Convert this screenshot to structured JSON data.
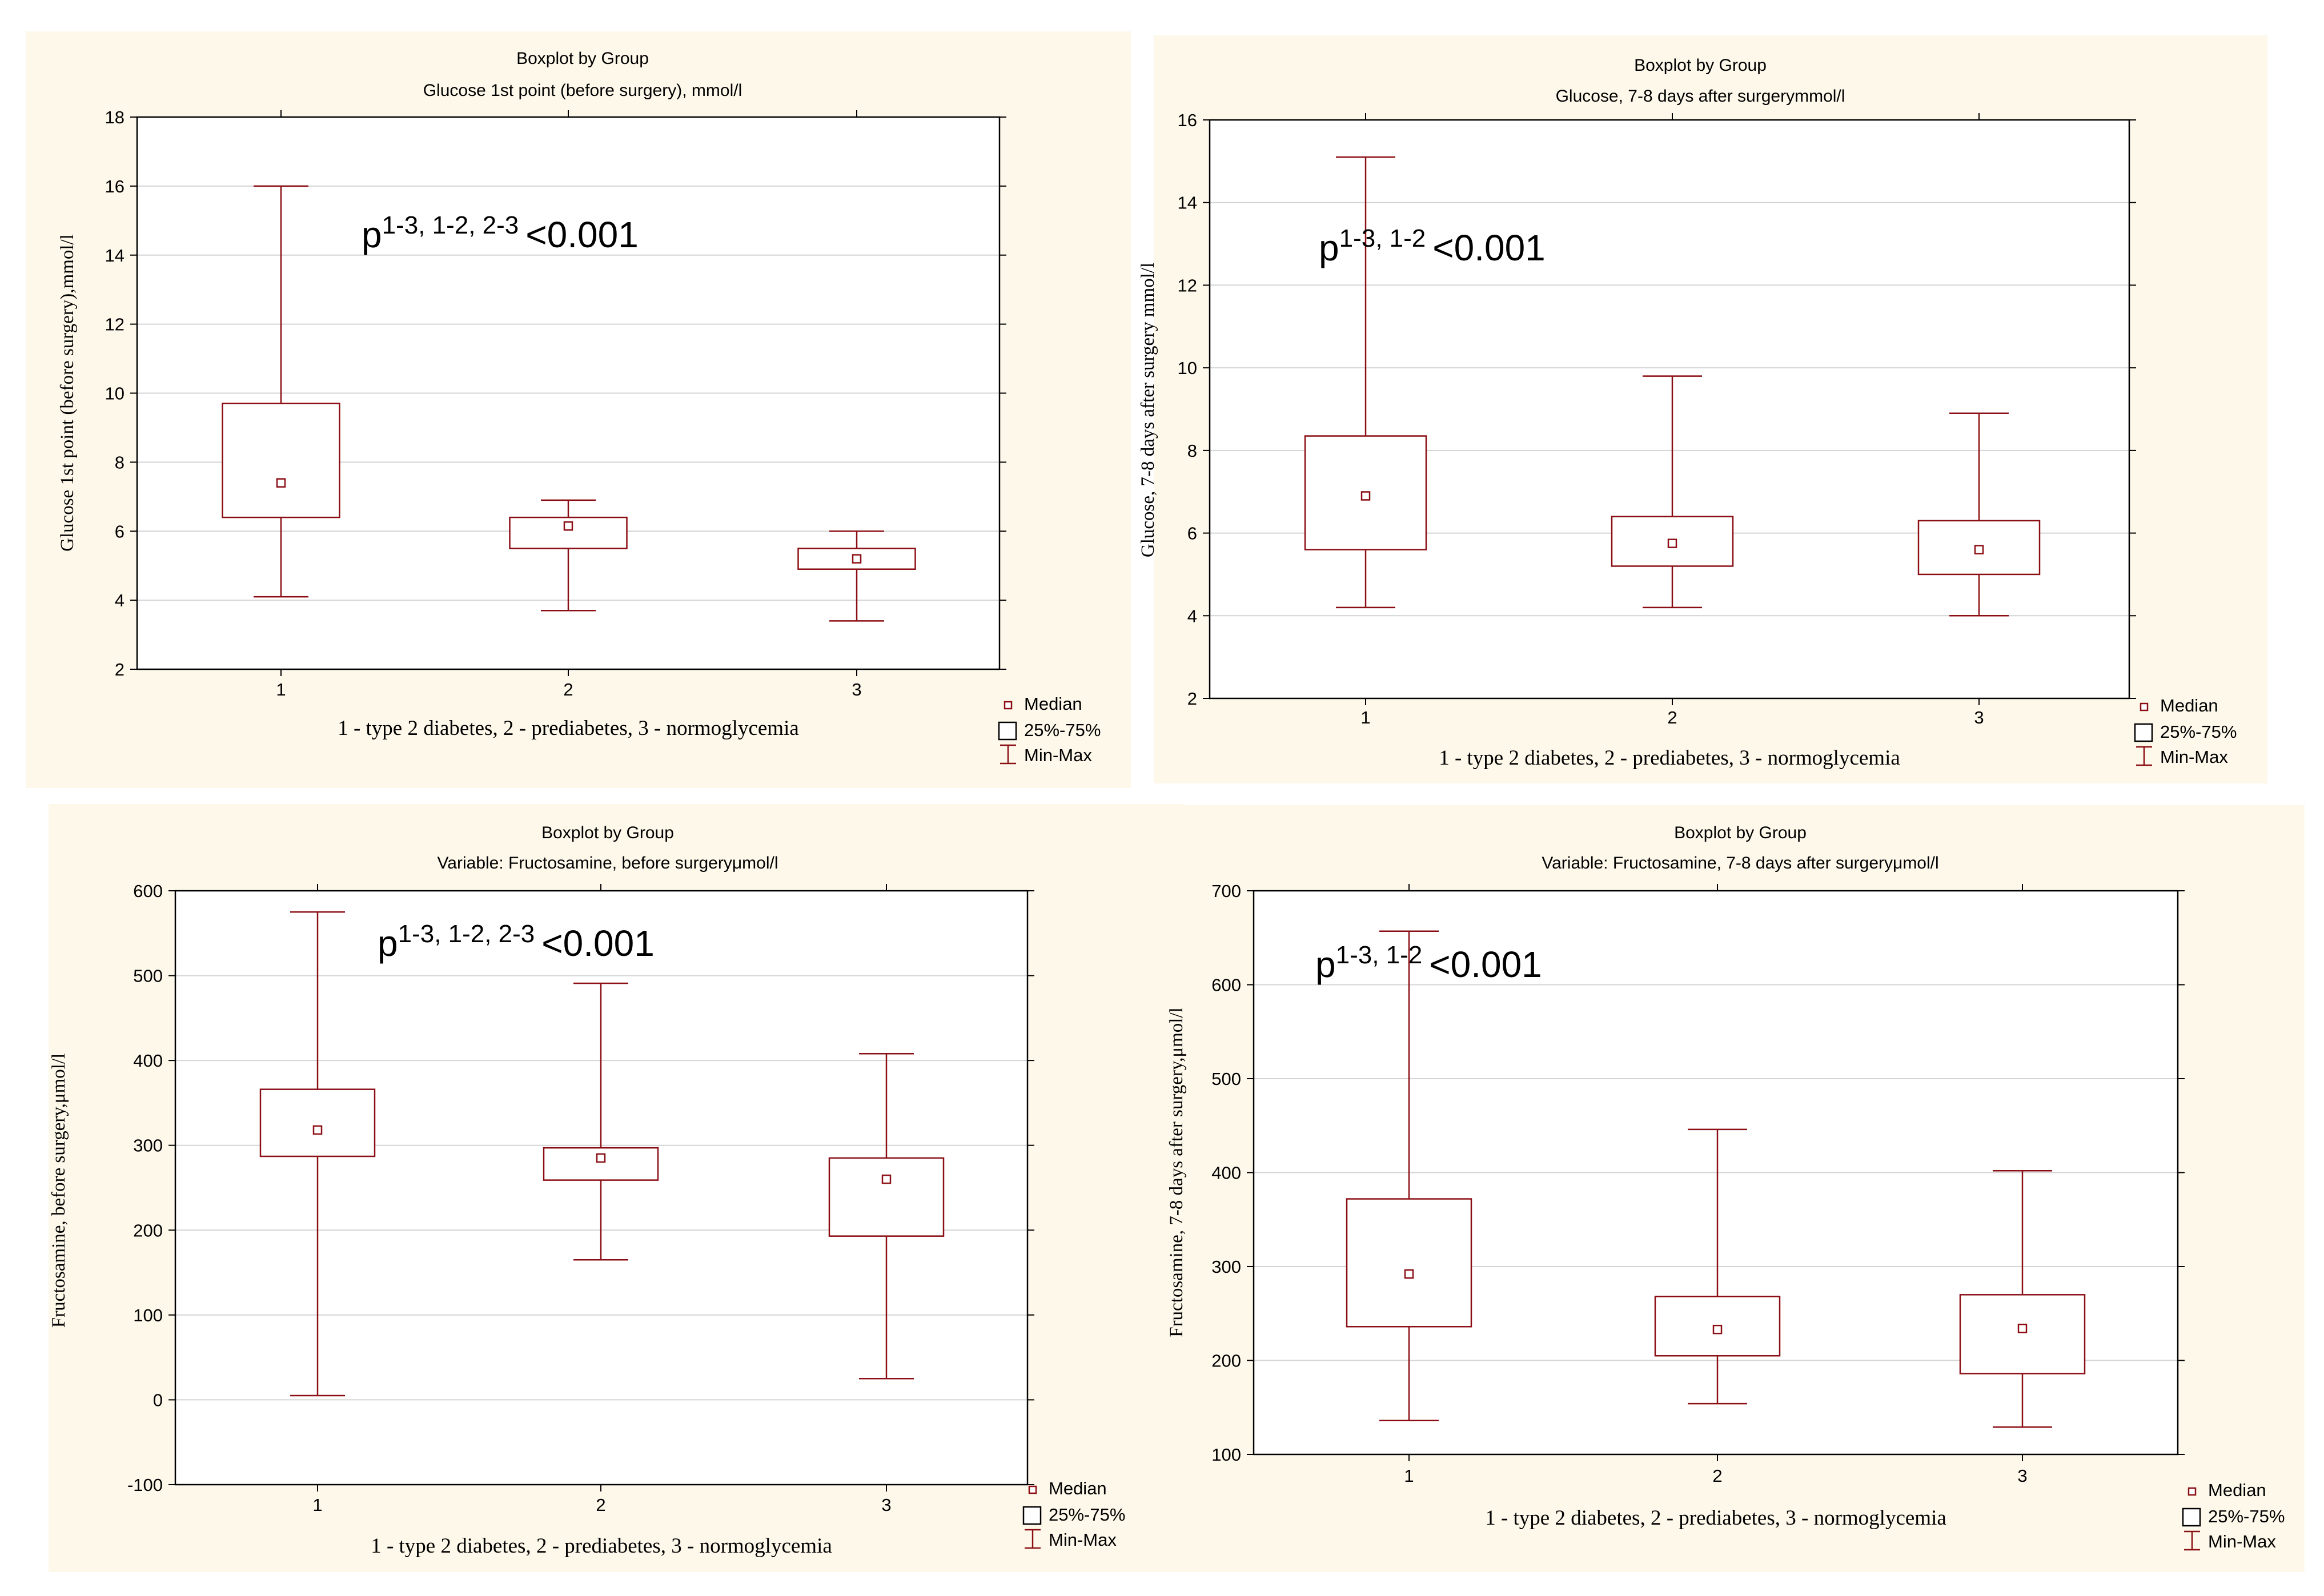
{
  "legend": {
    "median": "Median",
    "box": "25%-75%",
    "whisker": "Min-Max"
  },
  "colors": {
    "mark": "#8b0e14",
    "panel": "#fdf8ea",
    "grid": "#d4d4d4",
    "frame": "#000000"
  },
  "chart_data": [
    {
      "type": "boxplot",
      "title": "Boxplot by Group",
      "subtitle": "Glucose 1st point (before surgery), mmol/l",
      "ylabel": "Glucose 1st point (before surgery),mmol/l",
      "xlabel": "1 - type 2 diabetes, 2 - prediabetes, 3 - normoglycemia",
      "ylim": [
        2,
        18
      ],
      "yticks": [
        2,
        4,
        6,
        8,
        10,
        12,
        14,
        16,
        18
      ],
      "categories": [
        "1",
        "2",
        "3"
      ],
      "annotation": {
        "base": "p",
        "sup": "1-3, 1-2, 2-3",
        "tail": "<0.001"
      },
      "groups": [
        {
          "category": "1",
          "min": 4.1,
          "q1": 6.4,
          "median": 7.4,
          "q3": 9.7,
          "max": 16.0
        },
        {
          "category": "2",
          "min": 3.7,
          "q1": 5.5,
          "median": 6.15,
          "q3": 6.4,
          "max": 6.9
        },
        {
          "category": "3",
          "min": 3.4,
          "q1": 4.9,
          "median": 5.2,
          "q3": 5.5,
          "max": 6.0
        }
      ]
    },
    {
      "type": "boxplot",
      "title": "Boxplot by Group",
      "subtitle": "Glucose, 7-8 days after surgerymmol/l",
      "ylabel": "Glucose, 7-8 days after surgery mmol/l",
      "xlabel": "1 - type 2 diabetes, 2 - prediabetes, 3 - normoglycemia",
      "ylim": [
        2,
        16
      ],
      "yticks": [
        2,
        4,
        6,
        8,
        10,
        12,
        14,
        16
      ],
      "categories": [
        "1",
        "2",
        "3"
      ],
      "annotation": {
        "base": "p",
        "sup": "1-3, 1-2",
        "tail": "<0.001"
      },
      "groups": [
        {
          "category": "1",
          "min": 4.2,
          "q1": 5.6,
          "median": 6.9,
          "q3": 8.35,
          "max": 15.1
        },
        {
          "category": "2",
          "min": 4.2,
          "q1": 5.2,
          "median": 5.75,
          "q3": 6.4,
          "max": 9.8
        },
        {
          "category": "3",
          "min": 4.0,
          "q1": 5.0,
          "median": 5.6,
          "q3": 6.3,
          "max": 8.9
        }
      ]
    },
    {
      "type": "boxplot",
      "title": "Boxplot by Group",
      "subtitle": "Variable: Fructosamine, before surgeryμmol/l",
      "ylabel": "Fructosamine, before surgery,μmol/l",
      "xlabel": "1 - type 2 diabetes, 2 - prediabetes, 3 - normoglycemia",
      "ylim": [
        -100,
        600
      ],
      "yticks": [
        -100,
        0,
        100,
        200,
        300,
        400,
        500,
        600
      ],
      "categories": [
        "1",
        "2",
        "3"
      ],
      "annotation": {
        "base": "p",
        "sup": "1-3, 1-2, 2-3",
        "tail": "<0.001"
      },
      "groups": [
        {
          "category": "1",
          "min": 5,
          "q1": 287,
          "median": 318,
          "q3": 366,
          "max": 575
        },
        {
          "category": "2",
          "min": 165,
          "q1": 259,
          "median": 285,
          "q3": 297,
          "max": 491
        },
        {
          "category": "3",
          "min": 25,
          "q1": 193,
          "median": 260,
          "q3": 285,
          "max": 408
        }
      ]
    },
    {
      "type": "boxplot",
      "title": "Boxplot by Group",
      "subtitle": "Variable: Fructosamine, 7-8 days after surgeryμmol/l",
      "ylabel": "Fructosamine, 7-8 days after surgery,μmol/l",
      "xlabel": "1 - type 2 diabetes, 2 - prediabetes, 3 - normoglycemia",
      "ylim": [
        100,
        700
      ],
      "yticks": [
        100,
        200,
        300,
        400,
        500,
        600,
        700
      ],
      "categories": [
        "1",
        "2",
        "3"
      ],
      "annotation": {
        "base": "p",
        "sup": "1-3, 1-2",
        "tail": "<0.001"
      },
      "groups": [
        {
          "category": "1",
          "min": 136,
          "q1": 236,
          "median": 292,
          "q3": 372,
          "max": 657
        },
        {
          "category": "2",
          "min": 154,
          "q1": 205,
          "median": 233,
          "q3": 268,
          "max": 446
        },
        {
          "category": "3",
          "min": 129,
          "q1": 186,
          "median": 234,
          "q3": 270,
          "max": 402
        }
      ]
    }
  ]
}
